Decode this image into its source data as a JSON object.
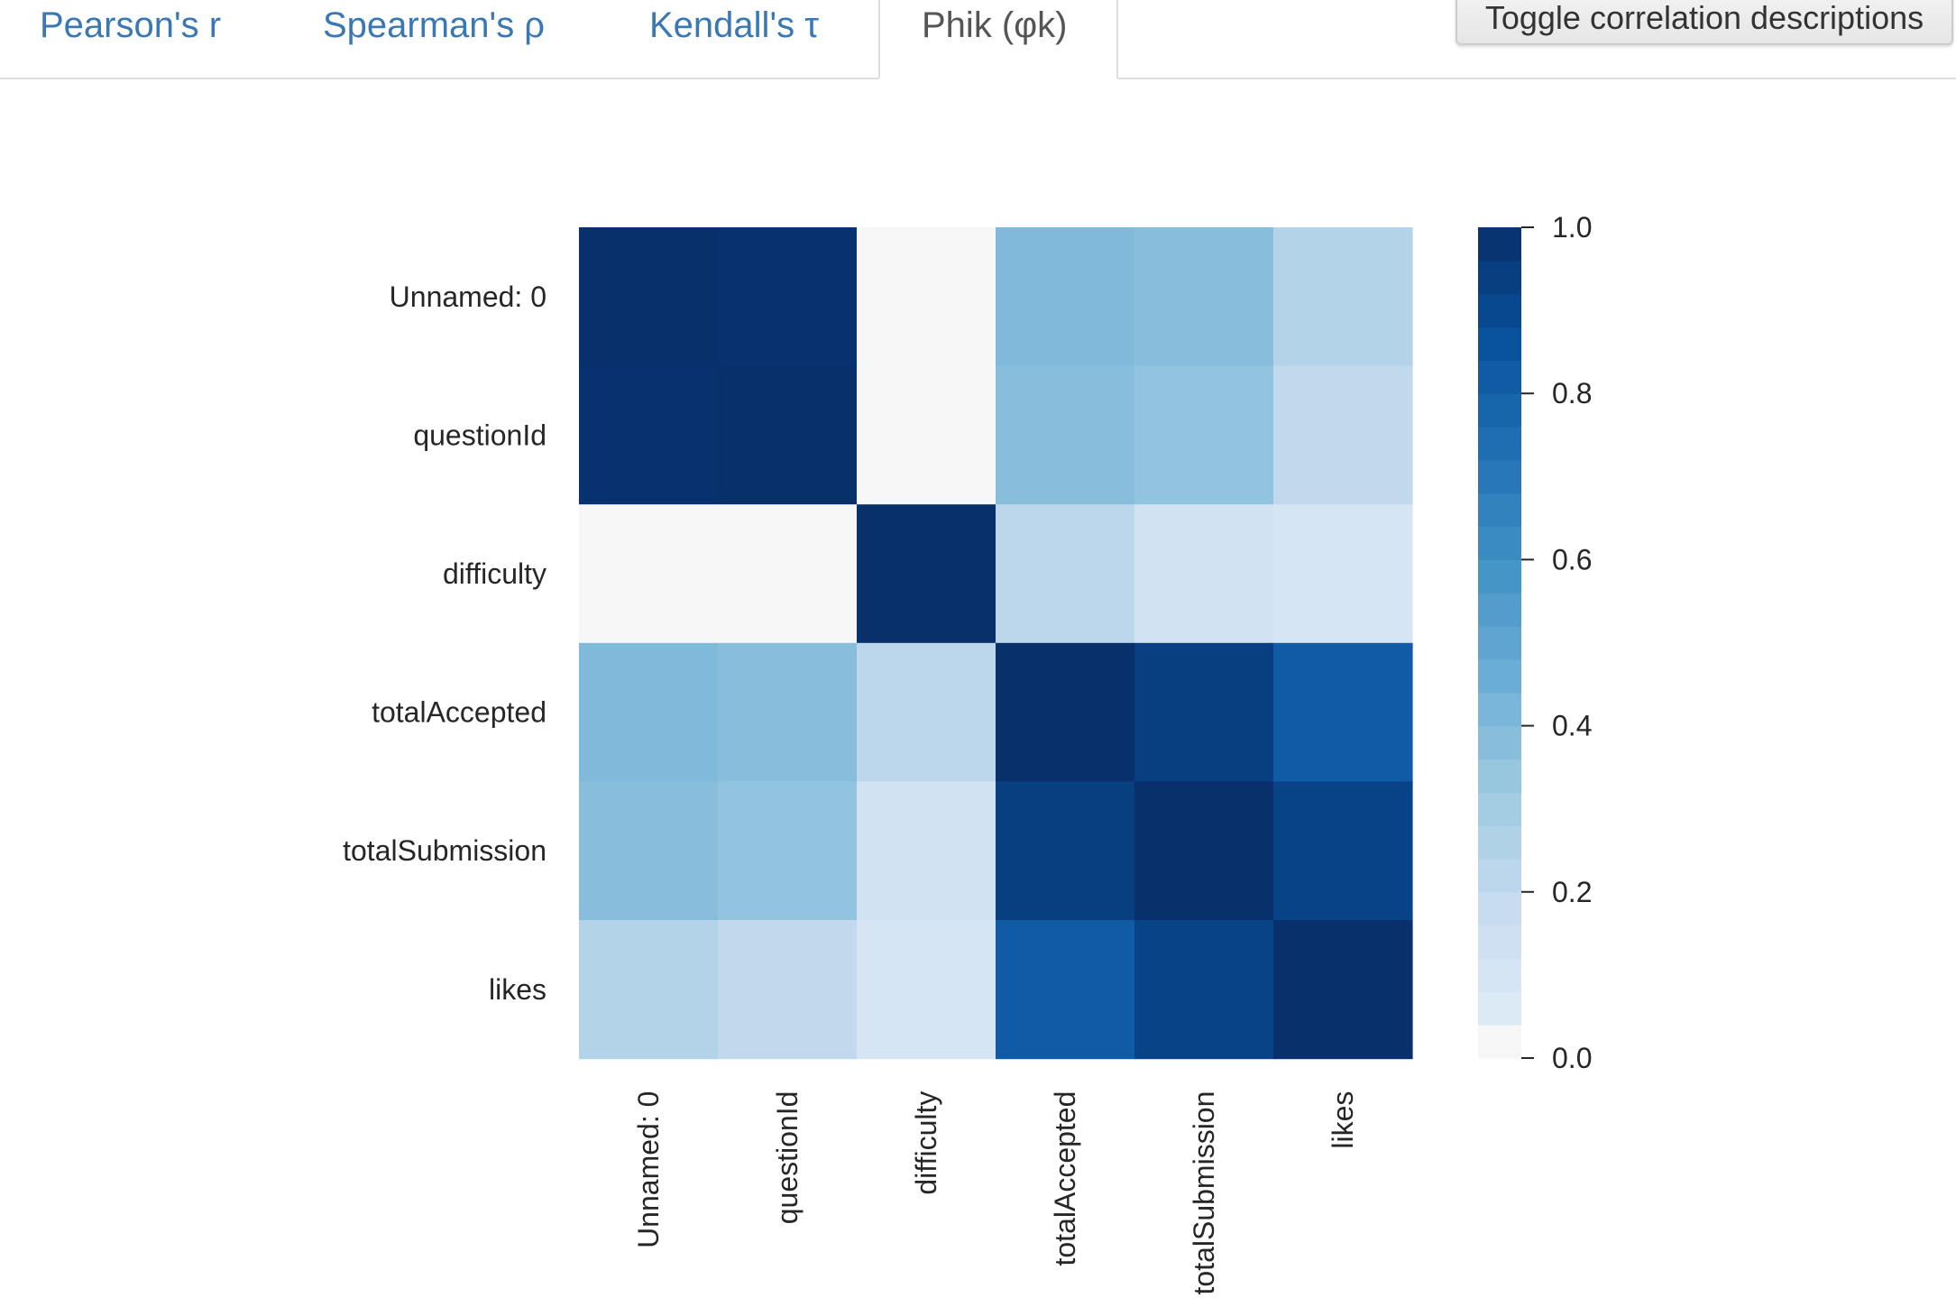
{
  "tabs": [
    {
      "label": "Pearson's r",
      "active": false
    },
    {
      "label": "Spearman's ρ",
      "active": false
    },
    {
      "label": "Kendall's τ",
      "active": false
    },
    {
      "label": "Phik (φk)",
      "active": true
    }
  ],
  "toggle_button": {
    "label": "Toggle correlation descriptions"
  },
  "colors": {
    "tab_link": "#3a78b5",
    "tab_active_text": "#555555",
    "heatmap_low": "#f7f7f7",
    "heatmap_high": "#08306b"
  },
  "chart_data": {
    "type": "heatmap",
    "title": "",
    "rows": [
      "Unnamed: 0",
      "questionId",
      "difficulty",
      "totalAccepted",
      "totalSubmission",
      "likes"
    ],
    "columns": [
      "Unnamed: 0",
      "questionId",
      "difficulty",
      "totalAccepted",
      "totalSubmission",
      "likes"
    ],
    "values": [
      [
        1.0,
        0.99,
        0.0,
        0.4,
        0.38,
        0.25
      ],
      [
        0.99,
        1.0,
        0.0,
        0.38,
        0.35,
        0.2
      ],
      [
        0.0,
        0.0,
        1.0,
        0.22,
        0.12,
        0.1
      ],
      [
        0.4,
        0.38,
        0.22,
        1.0,
        0.94,
        0.82
      ],
      [
        0.38,
        0.35,
        0.12,
        0.94,
        1.0,
        0.92
      ],
      [
        0.25,
        0.2,
        0.1,
        0.82,
        0.92,
        1.0
      ]
    ],
    "colorbar": {
      "min": 0.0,
      "max": 1.0,
      "ticks": [
        "0.0",
        "0.2",
        "0.4",
        "0.6",
        "0.8",
        "1.0"
      ],
      "colormap": "Blues",
      "levels": 25
    }
  }
}
